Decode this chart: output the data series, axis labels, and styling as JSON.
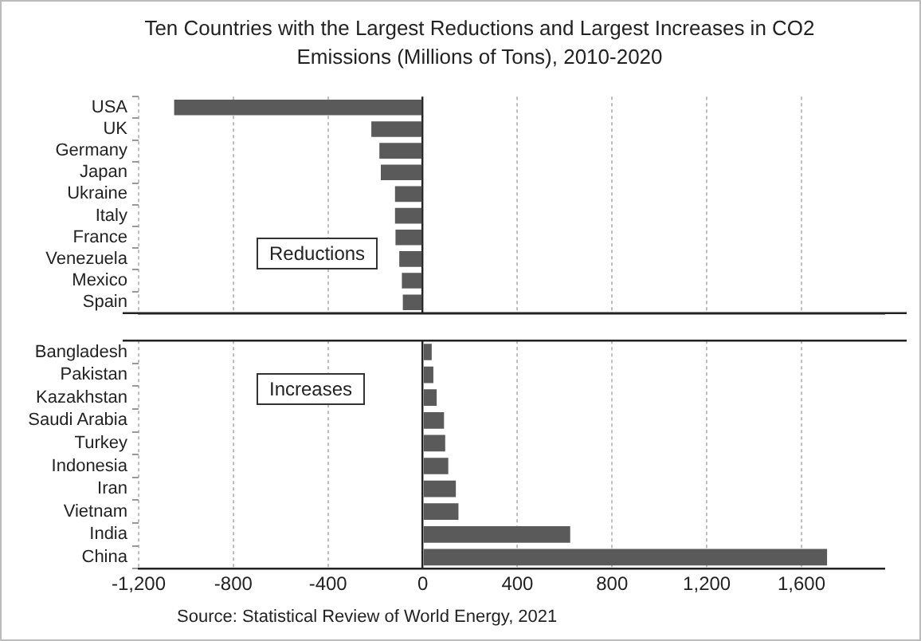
{
  "chart_data": [
    {
      "type": "bar",
      "orientation": "horizontal",
      "title": "Ten Countries with the Largest Reductions and Largest Increases in CO2 Emissions (Millions of Tons), 2010-2020",
      "categories": [
        "USA",
        "UK",
        "Germany",
        "Japan",
        "Ukraine",
        "Italy",
        "France",
        "Venezuela",
        "Mexico",
        "Spain"
      ],
      "values": [
        -1050,
        -217,
        -183,
        -177,
        -117,
        -117,
        -115,
        -99,
        -88,
        -84
      ],
      "color": "#5a5a5a",
      "xlim": [
        -1200,
        1950
      ],
      "xticks": [
        -1200,
        -800,
        -400,
        0,
        400,
        800,
        1200,
        1600
      ],
      "tick_labels": "y",
      "grid": "x",
      "annotations": [
        "Reductions"
      ]
    },
    {
      "type": "bar",
      "orientation": "horizontal",
      "categories": [
        "Bangladesh",
        "Pakistan",
        "Kazakhstan",
        "Saudi Arabia",
        "Turkey",
        "Indonesia",
        "Iran",
        "Vietnam",
        "India",
        "China"
      ],
      "values": [
        38,
        45,
        59,
        90,
        95,
        108,
        140,
        151,
        623,
        1708
      ],
      "color": "#5a5a5a",
      "xlim": [
        -1200,
        1950
      ],
      "xticks": [
        {
          "value": -1200,
          "label": "-1,200"
        },
        -800,
        -400,
        0,
        400,
        800,
        {
          "value": 1200,
          "label": "1,200"
        },
        {
          "value": 1600,
          "label": "1,600"
        }
      ],
      "grid": "x",
      "annotations": [
        "Increases",
        "Source: Statistical Review of World Energy, 2021"
      ]
    }
  ]
}
